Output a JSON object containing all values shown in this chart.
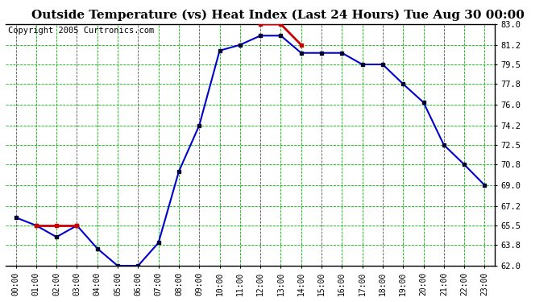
{
  "title": "Outside Temperature (vs) Heat Index (Last 24 Hours) Tue Aug 30 00:00",
  "copyright": "Copyright 2005 Curtronics.com",
  "hours": [
    "00:00",
    "01:00",
    "02:00",
    "03:00",
    "04:00",
    "05:00",
    "06:00",
    "07:00",
    "08:00",
    "09:00",
    "10:00",
    "11:00",
    "12:00",
    "13:00",
    "14:00",
    "15:00",
    "16:00",
    "17:00",
    "18:00",
    "19:00",
    "20:00",
    "21:00",
    "22:00",
    "23:00"
  ],
  "temp_blue": [
    66.2,
    65.5,
    64.5,
    65.5,
    63.5,
    62.0,
    62.0,
    64.0,
    70.2,
    74.2,
    80.7,
    81.2,
    82.0,
    82.0,
    80.5,
    80.5,
    80.5,
    79.5,
    79.5,
    77.8,
    76.2,
    72.5,
    70.8,
    69.0
  ],
  "heat_red": [
    null,
    65.5,
    65.5,
    65.5,
    null,
    null,
    null,
    null,
    null,
    null,
    null,
    null,
    83.0,
    83.0,
    81.2,
    null,
    null,
    null,
    null,
    null,
    null,
    null,
    null,
    null
  ],
  "ylim": [
    62.0,
    83.0
  ],
  "yticks": [
    62.0,
    63.8,
    65.5,
    67.2,
    69.0,
    70.8,
    72.5,
    74.2,
    76.0,
    77.8,
    79.5,
    81.2,
    83.0
  ],
  "bg_color": "#ffffff",
  "plot_bg": "#ffffff",
  "grid_h_color": "#00bb00",
  "grid_v_major_color": "#555555",
  "grid_v_minor_color": "#00bb00",
  "line_color_blue": "#0000cc",
  "line_color_red": "#cc0000",
  "marker_color": "#000033",
  "title_fontsize": 11,
  "copyright_fontsize": 7.5
}
